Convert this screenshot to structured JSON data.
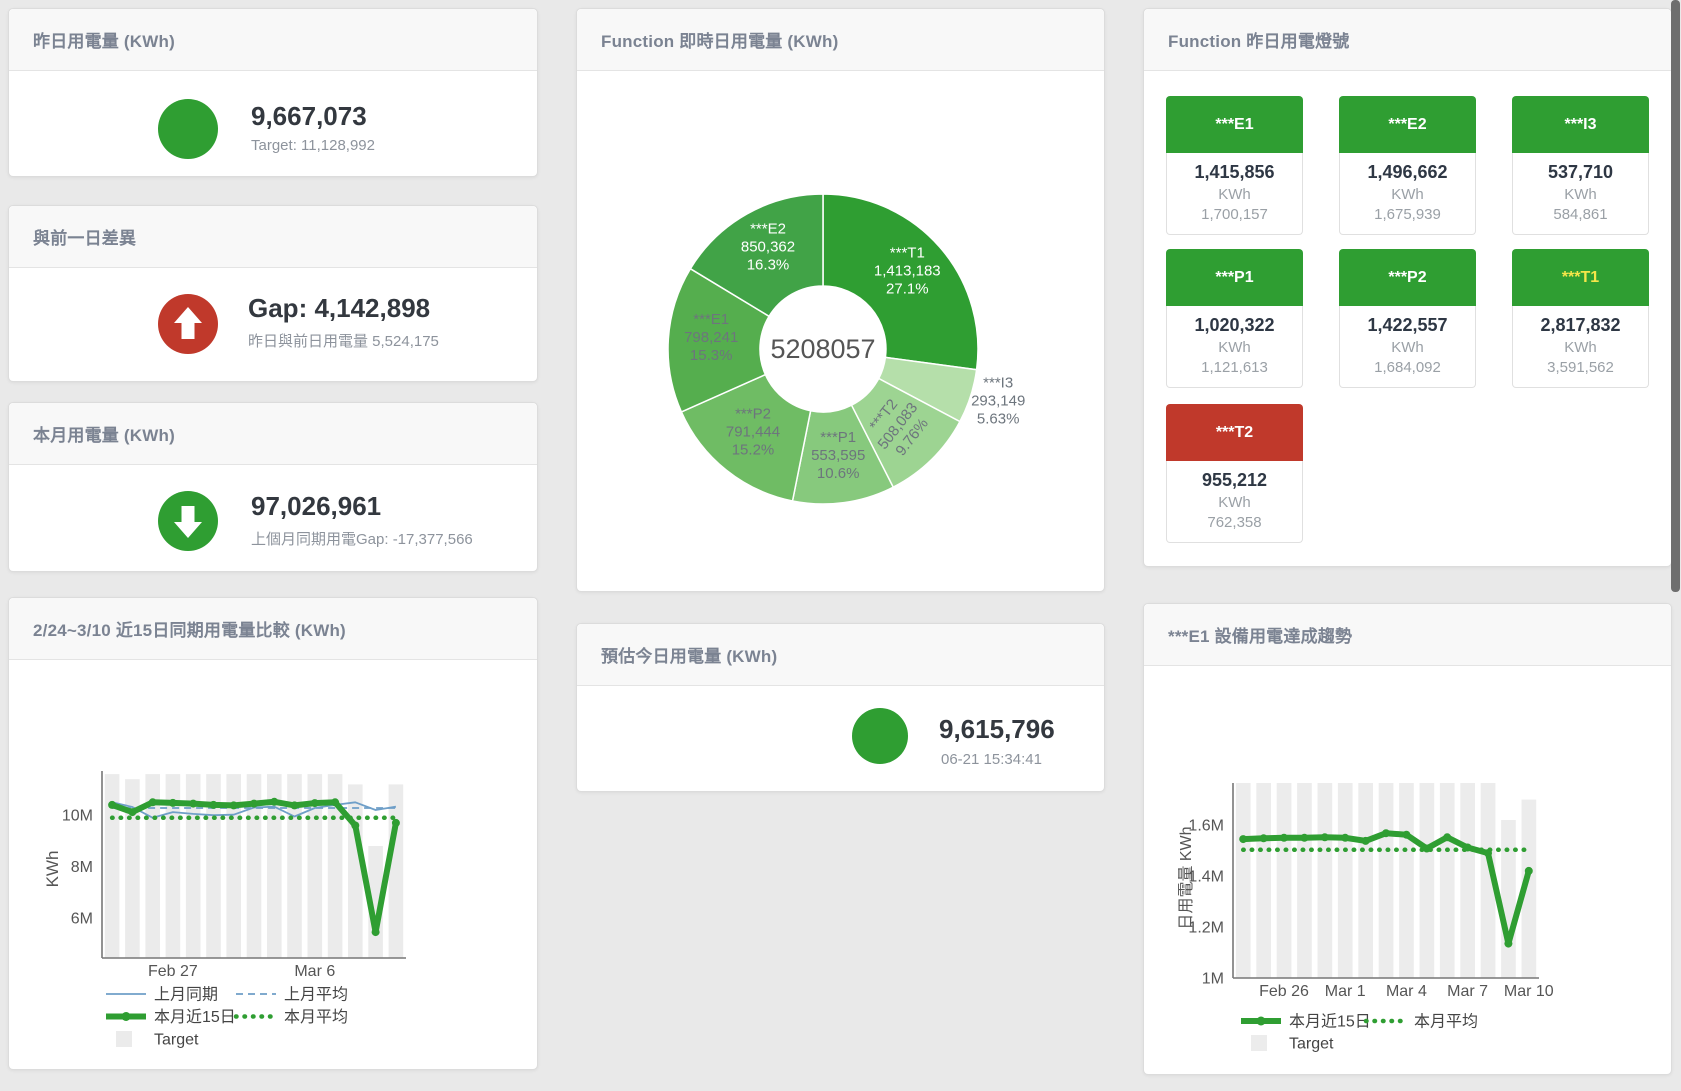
{
  "colors": {
    "green": "#2f9e32",
    "red": "#c0392b",
    "blue": "#6f9fc8",
    "bar_gray": "#ebebeb",
    "value_text": "#33383f",
    "muted_text": "#8d939c",
    "header_text": "#7b8392"
  },
  "cards": {
    "yesterday": {
      "title": "昨日用電量 (KWh)",
      "value": "9,667,073",
      "subtitle": "Target: 11,128,992",
      "icon": "green-circle"
    },
    "day_gap": {
      "title": "與前一日差異",
      "value": "Gap: 4,142,898",
      "subtitle": "昨日與前日用電量 5,524,175",
      "icon": "red-arrow-up-circle"
    },
    "month": {
      "title": "本月用電量 (KWh)",
      "value": "97,026,961",
      "subtitle": "上個月同期用電Gap: -17,377,566",
      "icon": "green-arrow-down-circle"
    },
    "estimate": {
      "title": "預估今日用電量 (KWh)",
      "value": "9,615,796",
      "subtitle": "06-21 15:34:41",
      "icon": "green-circle"
    },
    "realtime_donut": {
      "title": "Function 即時日用電量 (KWh)"
    },
    "compare15": {
      "title": "2/24~3/10 近15日同期用電量比較 (KWh)"
    },
    "lights": {
      "title": "Function 昨日用電燈號",
      "tiles": [
        {
          "label": "***E1",
          "value": "1,415,856",
          "unit": "KWh",
          "target": "1,700,157",
          "status": "green"
        },
        {
          "label": "***E2",
          "value": "1,496,662",
          "unit": "KWh",
          "target": "1,675,939",
          "status": "green"
        },
        {
          "label": "***I3",
          "value": "537,710",
          "unit": "KWh",
          "target": "584,861",
          "status": "green"
        },
        {
          "label": "***P1",
          "value": "1,020,322",
          "unit": "KWh",
          "target": "1,121,613",
          "status": "green"
        },
        {
          "label": "***P2",
          "value": "1,422,557",
          "unit": "KWh",
          "target": "1,684,092",
          "status": "green"
        },
        {
          "label": "***T1",
          "value": "2,817,832",
          "unit": "KWh",
          "target": "3,591,562",
          "status": "green",
          "label_color": "#f5e64a"
        },
        {
          "label": "***T2",
          "value": "955,212",
          "unit": "KWh",
          "target": "762,358",
          "status": "red"
        }
      ]
    },
    "e1_trend": {
      "title": "***E1 設備用電達成趨勢"
    }
  },
  "chart_data": [
    {
      "id": "realtime_donut",
      "type": "pie",
      "title": "Function 即時日用電量 (KWh)",
      "center_label": "5208057",
      "legend_position": "none",
      "slices": [
        {
          "name": "***T1",
          "value": 1413183,
          "display": "1,413,183",
          "pct": "27.1%",
          "color": "#2f9e32",
          "label_pos": "inside",
          "label_color": "#ffffff"
        },
        {
          "name": "***I3",
          "value": 293149,
          "display": "293,149",
          "pct": "5.63%",
          "color": "#b5dfaa",
          "label_pos": "outside",
          "label_color": "#6d757d"
        },
        {
          "name": "***T2",
          "value": 508083,
          "display": "508,083",
          "pct": "9.76%",
          "color": "#9dd492",
          "label_pos": "inside-rotated",
          "label_color": "#6d757d"
        },
        {
          "name": "***P1",
          "value": 553595,
          "display": "553,595",
          "pct": "10.6%",
          "color": "#87c97d",
          "label_pos": "inside",
          "label_color": "#6d757d"
        },
        {
          "name": "***P2",
          "value": 791444,
          "display": "791,444",
          "pct": "15.2%",
          "color": "#6fbc64",
          "label_pos": "inside",
          "label_color": "#6d757d"
        },
        {
          "name": "***E1",
          "value": 798241,
          "display": "798,241",
          "pct": "15.3%",
          "color": "#55ae4e",
          "label_pos": "inside",
          "label_color": "#6d757d"
        },
        {
          "name": "***E2",
          "value": 850362,
          "display": "850,362",
          "pct": "16.3%",
          "color": "#41a347",
          "label_pos": "inside",
          "label_color": "#ffffff"
        }
      ]
    },
    {
      "id": "compare15",
      "type": "line+bar",
      "title": "2/24~3/10 近15日同期用電量比較 (KWh)",
      "ylabel": "KWh",
      "grid": false,
      "ylim": [
        4440000,
        11720000
      ],
      "categories": [
        "2/24",
        "2/25",
        "2/26",
        "2/27",
        "2/28",
        "3/1",
        "3/2",
        "3/3",
        "3/4",
        "3/5",
        "3/6",
        "3/7",
        "3/8",
        "3/9",
        "3/10"
      ],
      "xticks": [
        {
          "index": 3,
          "label": "Feb 27"
        },
        {
          "index": 10,
          "label": "Mar 6"
        }
      ],
      "yticks": [
        {
          "value": 6000000,
          "label": "6M"
        },
        {
          "value": 8000000,
          "label": "8M"
        },
        {
          "value": 10000000,
          "label": "10M"
        }
      ],
      "series": [
        {
          "name": "Target",
          "kind": "bar",
          "color": "#ebebeb",
          "values": [
            11600000,
            11400000,
            11600000,
            11600000,
            11600000,
            11600000,
            11600000,
            11600000,
            11600000,
            11600000,
            11600000,
            11600000,
            11200000,
            8800000,
            11200000
          ]
        },
        {
          "name": "上月同期",
          "kind": "line",
          "dash": "solid",
          "color": "#6f9fc8",
          "width": 1.8,
          "values": [
            10500000,
            10320000,
            9900000,
            10120000,
            10050000,
            10000000,
            10020000,
            10300000,
            10330000,
            9950000,
            10280000,
            10400000,
            10500000,
            10200000,
            10330000
          ]
        },
        {
          "name": "上月平均",
          "kind": "line",
          "dash": "dashed",
          "color": "#6f9fc8",
          "width": 1.8,
          "values": [
            10280000,
            10280000,
            10280000,
            10280000,
            10280000,
            10280000,
            10280000,
            10280000,
            10280000,
            10280000,
            10280000,
            10280000,
            10280000,
            10280000,
            10280000
          ]
        },
        {
          "name": "本月平均",
          "kind": "line",
          "dash": "dotted",
          "color": "#2f9e32",
          "width": 4.5,
          "values": [
            9900000,
            9900000,
            9900000,
            9900000,
            9900000,
            9900000,
            9900000,
            9900000,
            9900000,
            9900000,
            9900000,
            9900000,
            9900000,
            9900000,
            9900000
          ]
        },
        {
          "name": "本月近15日",
          "kind": "line",
          "dash": "solid",
          "color": "#2f9e32",
          "width": 6,
          "marker": true,
          "values": [
            10400000,
            10120000,
            10500000,
            10480000,
            10450000,
            10400000,
            10380000,
            10450000,
            10520000,
            10380000,
            10470000,
            10500000,
            9600000,
            5450000,
            9700000
          ]
        }
      ],
      "legend_rows": [
        [
          "上月同期",
          "上月平均"
        ],
        [
          "本月近15日",
          "本月平均"
        ],
        [
          "Target"
        ]
      ]
    },
    {
      "id": "e1_trend",
      "type": "line+bar",
      "title": "***E1 設備用電達成趨勢",
      "ylabel": "日用電量 KWh",
      "grid": false,
      "ylim": [
        1000000,
        1765000
      ],
      "categories": [
        "Feb 24",
        "Feb 25",
        "Feb 26",
        "Feb 27",
        "Feb 28",
        "Mar 1",
        "Mar 2",
        "Mar 3",
        "Mar 4",
        "Mar 5",
        "Mar 6",
        "Mar 7",
        "Mar 8",
        "Mar 9",
        "Mar 10"
      ],
      "xticks": [
        {
          "index": 2,
          "label": "Feb 26"
        },
        {
          "index": 5,
          "label": "Mar 1"
        },
        {
          "index": 8,
          "label": "Mar 4"
        },
        {
          "index": 11,
          "label": "Mar 7"
        },
        {
          "index": 14,
          "label": "Mar 10"
        }
      ],
      "yticks": [
        {
          "value": 1000000,
          "label": "1M"
        },
        {
          "value": 1200000,
          "label": "1.2M"
        },
        {
          "value": 1400000,
          "label": "1.4M"
        },
        {
          "value": 1600000,
          "label": "1.6M"
        }
      ],
      "series": [
        {
          "name": "Target",
          "kind": "bar",
          "color": "#ececec",
          "values": [
            1780000,
            1780000,
            1780000,
            1780000,
            1780000,
            1780000,
            1780000,
            1780000,
            1780000,
            1780000,
            1780000,
            1780000,
            1780000,
            1620000,
            1700000
          ]
        },
        {
          "name": "本月平均",
          "kind": "line",
          "dash": "dotted",
          "color": "#2f9e32",
          "width": 4.5,
          "values": [
            1503000,
            1503000,
            1503000,
            1503000,
            1503000,
            1503000,
            1503000,
            1503000,
            1503000,
            1503000,
            1503000,
            1503000,
            1503000,
            1503000,
            1503000
          ]
        },
        {
          "name": "本月近15日",
          "kind": "line",
          "dash": "solid",
          "color": "#2f9e32",
          "width": 6,
          "marker": true,
          "values": [
            1545000,
            1548000,
            1550000,
            1550000,
            1552000,
            1550000,
            1538000,
            1568000,
            1562000,
            1508000,
            1552000,
            1512000,
            1490000,
            1135000,
            1420000
          ]
        }
      ],
      "legend_rows": [
        [
          "本月近15日",
          "本月平均"
        ],
        [
          "Target"
        ]
      ]
    }
  ]
}
